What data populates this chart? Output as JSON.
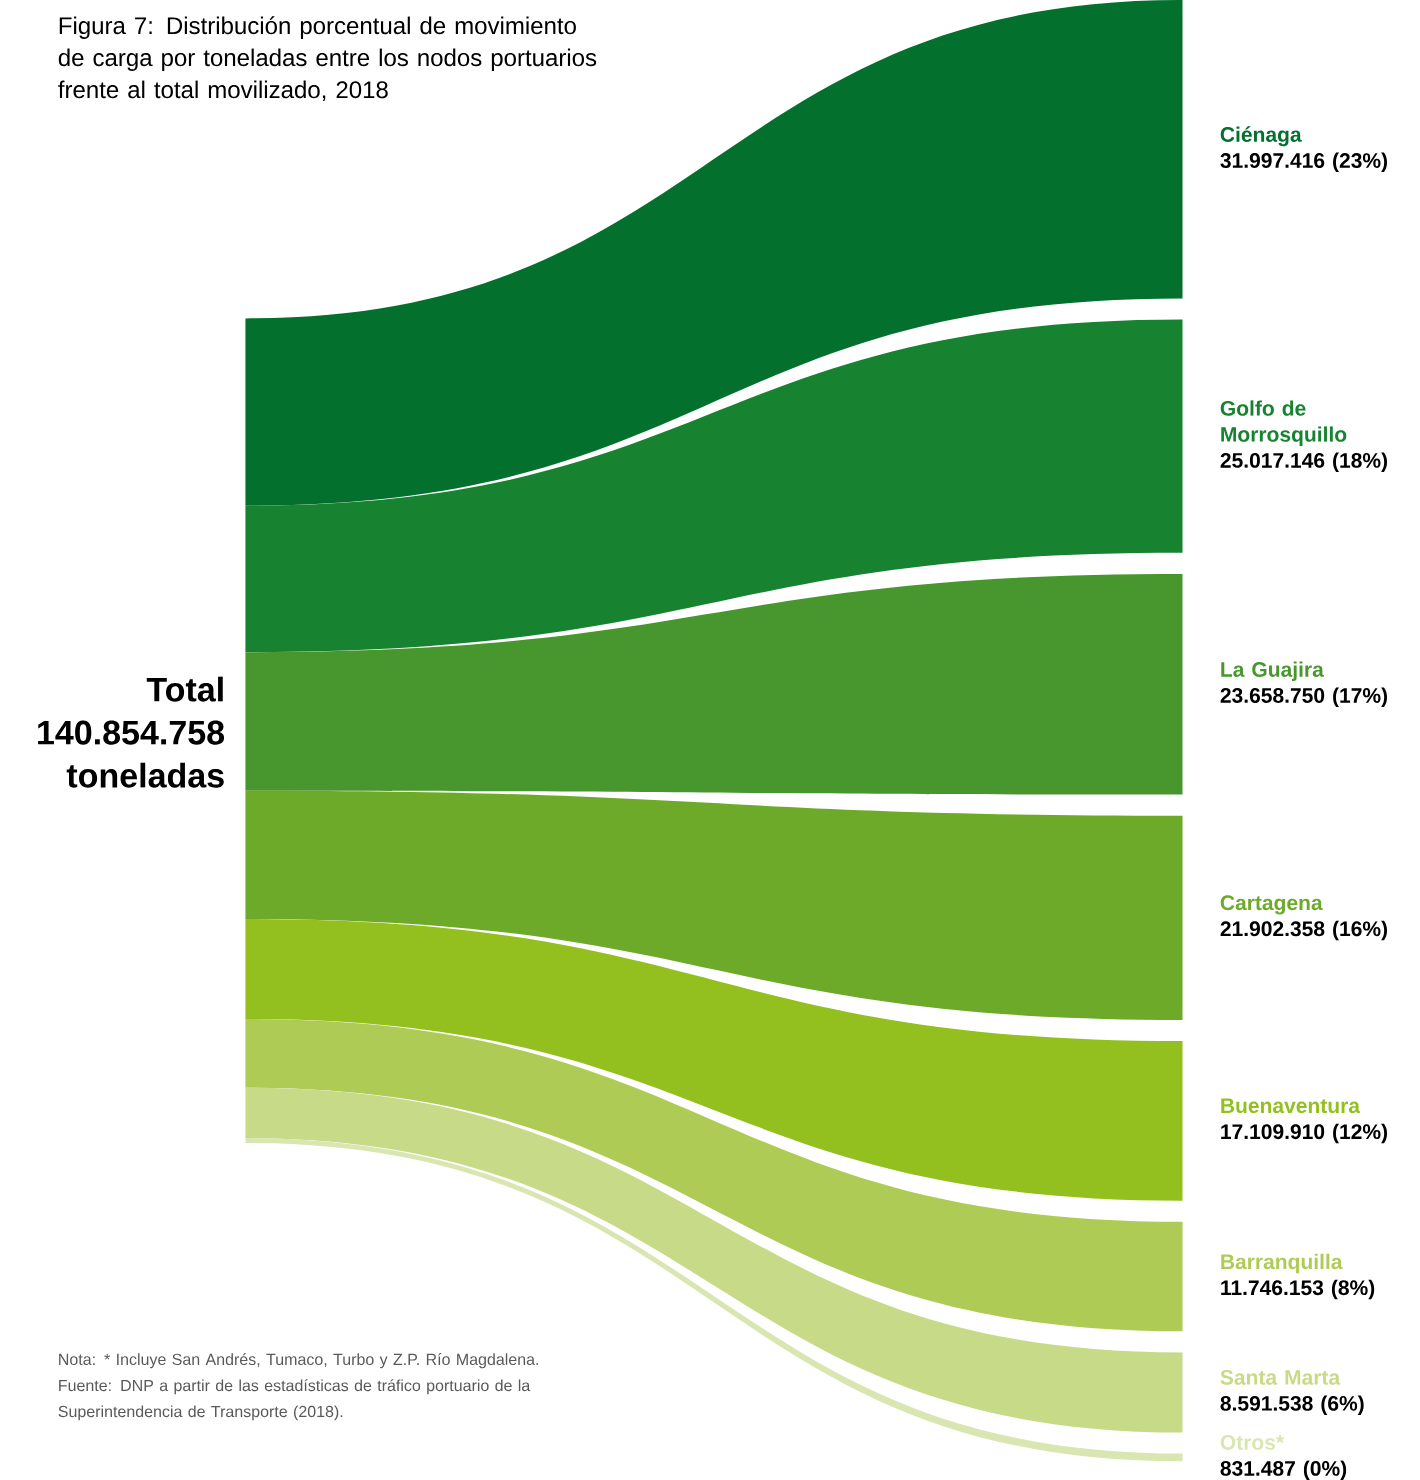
{
  "chart_data": {
    "type": "other",
    "title": "Figura 7: Distribución porcentual de movimiento de carga por toneladas entre los nodos portuarios frente al total movilizado, 2018",
    "categories": [
      "Ciénaga",
      "Golfo de Morrosquillo",
      "La Guajira",
      "Cartagena",
      "Buenaventura",
      "Barranquilla",
      "Santa Marta",
      "Otros*"
    ],
    "values": [
      31997416,
      25017146,
      23658750,
      21902358,
      17109910,
      11746153,
      8591538,
      831487
    ],
    "value_labels": [
      "31.997.416 (23%)",
      "25.017.146 (18%)",
      "23.658.750 (17%)",
      "21.902.358 (16%)",
      "17.109.910 (12%)",
      "11.746.153 (8%)",
      "8.591.538 (6%)",
      "831.487 (0%)"
    ],
    "colors": [
      "#03702e",
      "#178330",
      "#48962e",
      "#6eaa2a",
      "#93c01f",
      "#aecb55",
      "#c7da88",
      "#d9e6b2"
    ],
    "annotations": [
      "Total 140.854.758 toneladas",
      "Nota: * Incluye San Andrés, Tumaco, Turbo y Z.P. Río Magdalena.",
      "Fuente: DNP a partir de las estadísticas de tráfico portuario de la Superintendencia de Transporte (2018)."
    ]
  }
}
